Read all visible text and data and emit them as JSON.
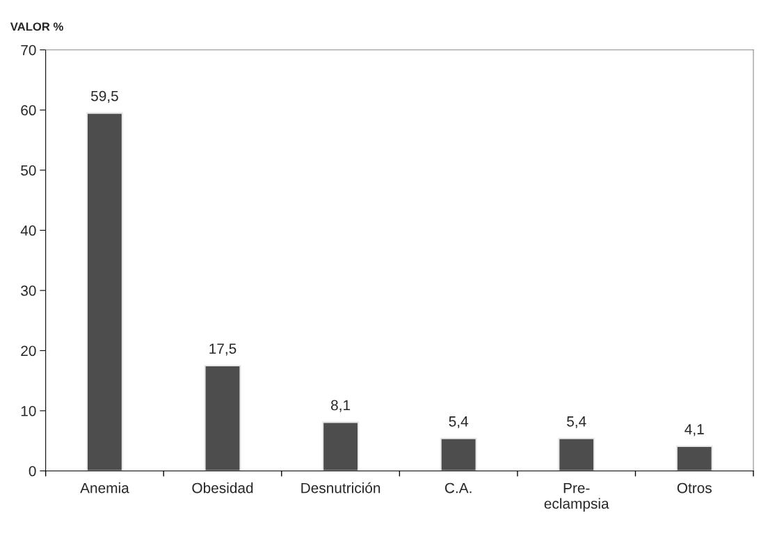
{
  "chart_data": {
    "type": "bar",
    "ylabel": "VALOR %",
    "categories": [
      "Anemia",
      "Obesidad",
      "Desnutrición",
      "C.A.",
      "Pre-\neclampsia",
      "Otros"
    ],
    "values": [
      59.5,
      17.5,
      8.1,
      5.4,
      5.4,
      4.1
    ],
    "value_labels": [
      "59,5",
      "17,5",
      "8,1",
      "5,4",
      "5,4",
      "4,1"
    ],
    "color": "#4d4d4d",
    "ylim": [
      0,
      70
    ],
    "yticks": [
      0,
      10,
      20,
      30,
      40,
      50,
      60,
      70
    ],
    "grid": false,
    "legend": false
  }
}
